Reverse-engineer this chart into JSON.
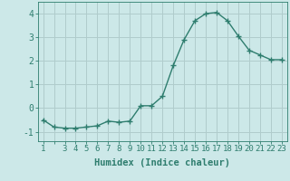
{
  "x": [
    1,
    2,
    3,
    4,
    5,
    6,
    7,
    8,
    9,
    10,
    11,
    12,
    13,
    14,
    15,
    16,
    17,
    18,
    19,
    20,
    21,
    22,
    23
  ],
  "y": [
    -0.5,
    -0.8,
    -0.85,
    -0.85,
    -0.8,
    -0.75,
    -0.55,
    -0.6,
    -0.55,
    0.1,
    0.1,
    0.5,
    1.8,
    2.9,
    3.7,
    4.0,
    4.05,
    3.7,
    3.05,
    2.45,
    2.25,
    2.05,
    2.05
  ],
  "line_color": "#2e7d6e",
  "marker": "+",
  "marker_size": 4,
  "bg_color": "#cce8e8",
  "grid_color": "#b0cccc",
  "xlabel": "Humidex (Indice chaleur)",
  "xticks": [
    1,
    3,
    4,
    5,
    6,
    7,
    8,
    9,
    10,
    11,
    12,
    13,
    14,
    15,
    16,
    17,
    18,
    19,
    20,
    21,
    22,
    23
  ],
  "yticks": [
    -1,
    0,
    1,
    2,
    3,
    4
  ],
  "ylim": [
    -1.4,
    4.5
  ],
  "xlim": [
    0.5,
    23.5
  ],
  "tick_color": "#2e7d6e",
  "label_color": "#2e7d6e",
  "font_size_label": 7.5,
  "font_size_tick": 6.5
}
